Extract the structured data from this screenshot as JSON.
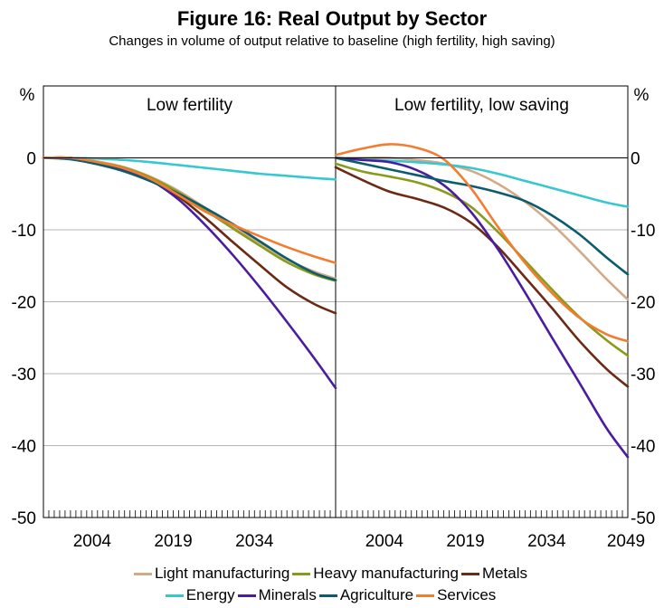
{
  "figure": {
    "title": "Figure 16: Real Output by Sector",
    "subtitle": "Changes in volume of output relative to baseline (high fertility, high saving)"
  },
  "chart_data": {
    "type": "line",
    "y_unit": "%",
    "ylim": [
      -50,
      10
    ],
    "yticks": [
      0,
      -10,
      -20,
      -30,
      -40,
      -50
    ],
    "xlim": [
      1995,
      2049
    ],
    "xticks_left": [
      2004,
      2019,
      2034
    ],
    "xticks_right": [
      2004,
      2019,
      2034,
      2049
    ],
    "x": [
      1995,
      2000,
      2005,
      2010,
      2015,
      2020,
      2025,
      2030,
      2035,
      2040,
      2045,
      2049
    ],
    "grid": true,
    "legend_position": "bottom",
    "panels": [
      {
        "title": "Low fertility",
        "series": [
          {
            "name": "Light manufacturing",
            "color": "#d4aa86",
            "values": [
              0,
              0,
              -0.5,
              -1.3,
              -2.7,
              -4.6,
              -7.0,
              -9.5,
              -11.8,
              -14.1,
              -15.8,
              -16.8
            ]
          },
          {
            "name": "Heavy manufacturing",
            "color": "#8a9a1a",
            "values": [
              0,
              0,
              -0.6,
              -1.4,
              -2.8,
              -4.8,
              -7.3,
              -9.8,
              -12.2,
              -14.5,
              -16.2,
              -17.1
            ]
          },
          {
            "name": "Metals",
            "color": "#6b2a14",
            "values": [
              0,
              0,
              -0.7,
              -1.6,
              -3.1,
              -5.4,
              -8.4,
              -11.7,
              -14.9,
              -18.0,
              -20.3,
              -21.6
            ]
          },
          {
            "name": "Energy",
            "color": "#36c8d0",
            "values": [
              0,
              0,
              -0.1,
              -0.3,
              -0.6,
              -1.0,
              -1.4,
              -1.8,
              -2.2,
              -2.5,
              -2.8,
              -3.0
            ]
          },
          {
            "name": "Minerals",
            "color": "#4a1c9e",
            "values": [
              0,
              0,
              -0.7,
              -1.7,
              -3.2,
              -5.8,
              -9.4,
              -13.5,
              -18.0,
              -22.8,
              -27.8,
              -32.0
            ]
          },
          {
            "name": "Agriculture",
            "color": "#0a5c6e",
            "values": [
              0,
              -0.2,
              -0.9,
              -1.9,
              -3.3,
              -5.0,
              -7.0,
              -9.2,
              -11.6,
              -14.0,
              -16.0,
              -17.0
            ]
          },
          {
            "name": "Services",
            "color": "#f37c30",
            "values": [
              0,
              0,
              -0.6,
              -1.5,
              -3.0,
              -5.2,
              -7.5,
              -9.3,
              -10.9,
              -12.4,
              -13.7,
              -14.6
            ]
          }
        ]
      },
      {
        "title": "Low fertility, low saving",
        "series": [
          {
            "name": "Light manufacturing",
            "color": "#d4aa86",
            "values": [
              0,
              0,
              0,
              -0.3,
              -0.8,
              -1.8,
              -3.6,
              -6.1,
              -9.2,
              -12.9,
              -16.8,
              -19.7
            ]
          },
          {
            "name": "Heavy manufacturing",
            "color": "#8a9a1a",
            "values": [
              -0.8,
              -1.9,
              -2.6,
              -3.4,
              -4.7,
              -6.8,
              -10.3,
              -14.3,
              -18.3,
              -22.1,
              -25.3,
              -27.5
            ]
          },
          {
            "name": "Metals",
            "color": "#6b2a14",
            "values": [
              -1.3,
              -3.1,
              -4.7,
              -5.7,
              -6.9,
              -9.0,
              -12.4,
              -16.6,
              -20.9,
              -25.4,
              -29.3,
              -31.8
            ]
          },
          {
            "name": "Energy",
            "color": "#36c8d0",
            "values": [
              0,
              -0.2,
              -0.4,
              -0.6,
              -0.9,
              -1.4,
              -2.2,
              -3.2,
              -4.2,
              -5.2,
              -6.2,
              -6.8
            ]
          },
          {
            "name": "Minerals",
            "color": "#4a1c9e",
            "values": [
              0,
              -0.3,
              -0.6,
              -1.7,
              -3.8,
              -7.5,
              -12.7,
              -18.7,
              -25.0,
              -31.2,
              -37.5,
              -41.6
            ]
          },
          {
            "name": "Agriculture",
            "color": "#0a5c6e",
            "values": [
              0,
              -0.8,
              -1.6,
              -2.4,
              -3.2,
              -3.9,
              -4.8,
              -6.0,
              -8.0,
              -10.6,
              -13.8,
              -16.2
            ]
          },
          {
            "name": "Services",
            "color": "#f37c30",
            "values": [
              0.4,
              1.3,
              1.9,
              1.4,
              -0.2,
              -4.2,
              -9.6,
              -14.6,
              -18.8,
              -22.2,
              -24.5,
              -25.5
            ]
          }
        ]
      }
    ]
  },
  "legend": {
    "row1": [
      {
        "label": "Light manufacturing",
        "color": "#d4aa86"
      },
      {
        "label": "Heavy manufacturing",
        "color": "#8a9a1a"
      },
      {
        "label": "Metals",
        "color": "#6b2a14"
      }
    ],
    "row2": [
      {
        "label": "Energy",
        "color": "#36c8d0"
      },
      {
        "label": "Minerals",
        "color": "#4a1c9e"
      },
      {
        "label": "Agriculture",
        "color": "#0a5c6e"
      },
      {
        "label": "Services",
        "color": "#f37c30"
      }
    ]
  }
}
